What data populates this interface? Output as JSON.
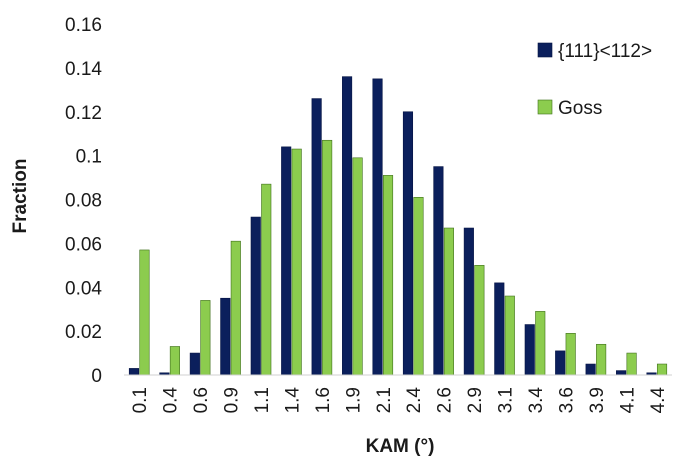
{
  "chart_data": {
    "type": "bar",
    "title": "",
    "xlabel": "KAM (°)",
    "ylabel": "Fraction",
    "ylim": [
      0,
      0.16
    ],
    "yticks": [
      "0",
      "0.02",
      "0.04",
      "0.06",
      "0.08",
      "0.1",
      "0.12",
      "0.14",
      "0.16"
    ],
    "categories": [
      "0.1",
      "0.4",
      "0.6",
      "0.9",
      "1.1",
      "1.4",
      "1.6",
      "1.9",
      "2.1",
      "2.4",
      "2.6",
      "2.9",
      "3.1",
      "3.4",
      "3.6",
      "3.9",
      "4.1",
      "4.4"
    ],
    "series": [
      {
        "name": "{111}<112>",
        "color": "#0b1f5c",
        "values": [
          0.003,
          0.001,
          0.01,
          0.035,
          0.072,
          0.104,
          0.126,
          0.136,
          0.135,
          0.12,
          0.095,
          0.067,
          0.042,
          0.023,
          0.011,
          0.005,
          0.002,
          0.001
        ]
      },
      {
        "name": "Goss",
        "color": "#8ccc4e",
        "values": [
          0.057,
          0.013,
          0.034,
          0.061,
          0.087,
          0.103,
          0.107,
          0.099,
          0.091,
          0.081,
          0.067,
          0.05,
          0.036,
          0.029,
          0.019,
          0.014,
          0.01,
          0.005
        ]
      }
    ],
    "grid": false,
    "legend_position": "right"
  }
}
